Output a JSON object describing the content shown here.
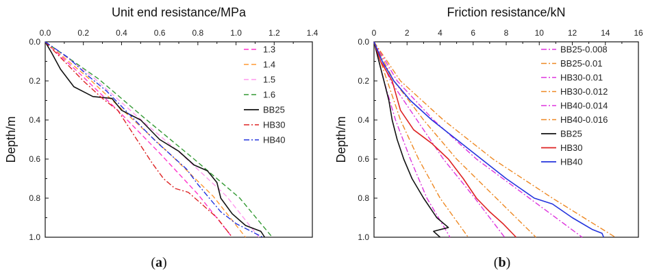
{
  "colors": {
    "1.3": "#ff33cc",
    "1.4": "#ff9933",
    "1.5": "#ff99ee",
    "1.6": "#339933",
    "BB25": "#111111",
    "HB30": "#dd2222",
    "HB40": "#2233dd",
    "pink_dd": "#dd33dd",
    "orange_dd": "#ee8822"
  },
  "chart_data": [
    {
      "id": "a",
      "type": "line",
      "title": "Unit end resistance/MPa",
      "ylabel": "Depth/m",
      "subfig_label": "a",
      "xlim": [
        0,
        1.4
      ],
      "ylim": [
        0,
        1.0
      ],
      "x_ticks": [
        "0.0",
        "0.2",
        "0.4",
        "0.6",
        "0.8",
        "1.0",
        "1.2",
        "1.4"
      ],
      "y_ticks": [
        "0.0",
        "0.2",
        "0.4",
        "0.6",
        "0.8",
        "1.0"
      ],
      "y_inverted": true,
      "legend_position": "top-right",
      "series": [
        {
          "name": "1.3",
          "color_key": "1.3",
          "dash": "dash",
          "points": [
            [
              0,
              0
            ],
            [
              0.2,
              0.18
            ],
            [
              0.4,
              0.37
            ],
            [
              0.6,
              0.57
            ],
            [
              0.8,
              0.78
            ],
            [
              0.98,
              1.0
            ]
          ]
        },
        {
          "name": "1.4",
          "color_key": "1.4",
          "dash": "dash",
          "points": [
            [
              0,
              0
            ],
            [
              0.22,
              0.18
            ],
            [
              0.44,
              0.38
            ],
            [
              0.66,
              0.58
            ],
            [
              0.88,
              0.79
            ],
            [
              1.05,
              1.0
            ]
          ]
        },
        {
          "name": "1.5",
          "color_key": "1.5",
          "dash": "dash",
          "points": [
            [
              0,
              0
            ],
            [
              0.25,
              0.18
            ],
            [
              0.48,
              0.38
            ],
            [
              0.72,
              0.58
            ],
            [
              0.95,
              0.79
            ],
            [
              1.12,
              1.0
            ]
          ]
        },
        {
          "name": "1.6",
          "color_key": "1.6",
          "dash": "dash",
          "points": [
            [
              0,
              0
            ],
            [
              0.28,
              0.19
            ],
            [
              0.52,
              0.39
            ],
            [
              0.78,
              0.6
            ],
            [
              1.02,
              0.8
            ],
            [
              1.19,
              1.0
            ]
          ]
        },
        {
          "name": "BB25",
          "color_key": "BB25",
          "dash": "solid",
          "points": [
            [
              0,
              0
            ],
            [
              0.03,
              0.05
            ],
            [
              0.08,
              0.14
            ],
            [
              0.15,
              0.23
            ],
            [
              0.25,
              0.28
            ],
            [
              0.35,
              0.29
            ],
            [
              0.4,
              0.35
            ],
            [
              0.5,
              0.4
            ],
            [
              0.6,
              0.5
            ],
            [
              0.7,
              0.56
            ],
            [
              0.78,
              0.63
            ],
            [
              0.85,
              0.66
            ],
            [
              0.9,
              0.72
            ],
            [
              0.92,
              0.8
            ],
            [
              0.98,
              0.88
            ],
            [
              1.05,
              0.94
            ],
            [
              1.13,
              0.97
            ],
            [
              1.15,
              1.0
            ]
          ]
        },
        {
          "name": "HB30",
          "color_key": "HB30",
          "dash": "dashdot",
          "points": [
            [
              0,
              0
            ],
            [
              0.1,
              0.1
            ],
            [
              0.2,
              0.2
            ],
            [
              0.3,
              0.29
            ],
            [
              0.38,
              0.35
            ],
            [
              0.44,
              0.44
            ],
            [
              0.5,
              0.53
            ],
            [
              0.56,
              0.62
            ],
            [
              0.62,
              0.7
            ],
            [
              0.68,
              0.75
            ],
            [
              0.75,
              0.77
            ],
            [
              0.82,
              0.83
            ],
            [
              0.9,
              0.9
            ],
            [
              0.98,
              1.0
            ]
          ]
        },
        {
          "name": "HB40",
          "color_key": "HB40",
          "dash": "dashdot",
          "points": [
            [
              0,
              0
            ],
            [
              0.12,
              0.08
            ],
            [
              0.22,
              0.17
            ],
            [
              0.32,
              0.25
            ],
            [
              0.42,
              0.35
            ],
            [
              0.5,
              0.43
            ],
            [
              0.58,
              0.51
            ],
            [
              0.66,
              0.58
            ],
            [
              0.74,
              0.65
            ],
            [
              0.8,
              0.73
            ],
            [
              0.86,
              0.8
            ],
            [
              0.92,
              0.87
            ],
            [
              1.0,
              0.93
            ],
            [
              1.08,
              0.97
            ],
            [
              1.14,
              1.0
            ]
          ]
        }
      ]
    },
    {
      "id": "b",
      "type": "line",
      "title": "Friction resistance/kN",
      "ylabel": "Depth/m",
      "subfig_label": "b",
      "xlim": [
        0,
        16
      ],
      "ylim": [
        0,
        1.0
      ],
      "x_ticks": [
        "0",
        "2",
        "4",
        "6",
        "8",
        "10",
        "12",
        "14",
        "16"
      ],
      "y_ticks": [
        "0.0",
        "0.2",
        "0.4",
        "0.6",
        "0.8",
        "1.0"
      ],
      "y_inverted": true,
      "legend_position": "top-right",
      "series": [
        {
          "name": "BB25-0.008",
          "color_key": "pink_dd",
          "dash": "dashdot",
          "points": [
            [
              0,
              0
            ],
            [
              0.6,
              0.2
            ],
            [
              1.3,
              0.4
            ],
            [
              2.2,
              0.6
            ],
            [
              3.2,
              0.8
            ],
            [
              4.6,
              1.0
            ]
          ]
        },
        {
          "name": "BB25-0.01",
          "color_key": "orange_dd",
          "dash": "dashdot",
          "points": [
            [
              0,
              0
            ],
            [
              0.8,
              0.2
            ],
            [
              1.6,
              0.4
            ],
            [
              2.7,
              0.6
            ],
            [
              4.0,
              0.8
            ],
            [
              5.7,
              1.0
            ]
          ]
        },
        {
          "name": "HB30-0.01",
          "color_key": "pink_dd",
          "dash": "dashdot",
          "points": [
            [
              0,
              0
            ],
            [
              1.0,
              0.2
            ],
            [
              2.6,
              0.4
            ],
            [
              4.2,
              0.6
            ],
            [
              6.1,
              0.8
            ],
            [
              7.9,
              1.0
            ]
          ]
        },
        {
          "name": "HB30-0.012",
          "color_key": "orange_dd",
          "dash": "dashdot",
          "points": [
            [
              0,
              0
            ],
            [
              1.2,
              0.2
            ],
            [
              3.0,
              0.4
            ],
            [
              5.0,
              0.6
            ],
            [
              7.4,
              0.8
            ],
            [
              9.8,
              1.0
            ]
          ]
        },
        {
          "name": "HB40-0.014",
          "color_key": "pink_dd",
          "dash": "dashdot",
          "points": [
            [
              0,
              0
            ],
            [
              1.4,
              0.2
            ],
            [
              3.6,
              0.4
            ],
            [
              6.2,
              0.6
            ],
            [
              9.4,
              0.8
            ],
            [
              12.6,
              1.0
            ]
          ]
        },
        {
          "name": "HB40-0.016",
          "color_key": "orange_dd",
          "dash": "dashdot",
          "points": [
            [
              0,
              0
            ],
            [
              1.6,
              0.2
            ],
            [
              4.2,
              0.4
            ],
            [
              7.2,
              0.6
            ],
            [
              10.8,
              0.8
            ],
            [
              14.6,
              1.0
            ]
          ]
        },
        {
          "name": "BB25",
          "color_key": "BB25",
          "dash": "solid",
          "points": [
            [
              0,
              0
            ],
            [
              0.3,
              0.1
            ],
            [
              0.6,
              0.2
            ],
            [
              0.9,
              0.3
            ],
            [
              1.1,
              0.4
            ],
            [
              1.4,
              0.5
            ],
            [
              1.8,
              0.6
            ],
            [
              2.3,
              0.7
            ],
            [
              3.0,
              0.8
            ],
            [
              3.8,
              0.9
            ],
            [
              4.5,
              0.95
            ],
            [
              3.6,
              0.97
            ],
            [
              4.0,
              1.0
            ]
          ]
        },
        {
          "name": "HB30",
          "color_key": "HB30",
          "dash": "solid",
          "points": [
            [
              0,
              0
            ],
            [
              0.4,
              0.1
            ],
            [
              1.1,
              0.2
            ],
            [
              1.6,
              0.35
            ],
            [
              2.4,
              0.45
            ],
            [
              3.5,
              0.52
            ],
            [
              4.5,
              0.6
            ],
            [
              5.4,
              0.7
            ],
            [
              6.2,
              0.8
            ],
            [
              7.0,
              0.87
            ],
            [
              7.8,
              0.93
            ],
            [
              8.6,
              1.0
            ]
          ]
        },
        {
          "name": "HB40",
          "color_key": "HB40",
          "dash": "solid",
          "points": [
            [
              0,
              0
            ],
            [
              0.5,
              0.1
            ],
            [
              1.2,
              0.2
            ],
            [
              2.2,
              0.3
            ],
            [
              3.5,
              0.4
            ],
            [
              5.0,
              0.5
            ],
            [
              6.5,
              0.6
            ],
            [
              8.0,
              0.7
            ],
            [
              9.7,
              0.8
            ],
            [
              10.8,
              0.83
            ],
            [
              12.0,
              0.9
            ],
            [
              13.2,
              0.96
            ],
            [
              13.8,
              0.98
            ],
            [
              13.9,
              1.0
            ]
          ]
        }
      ]
    }
  ]
}
